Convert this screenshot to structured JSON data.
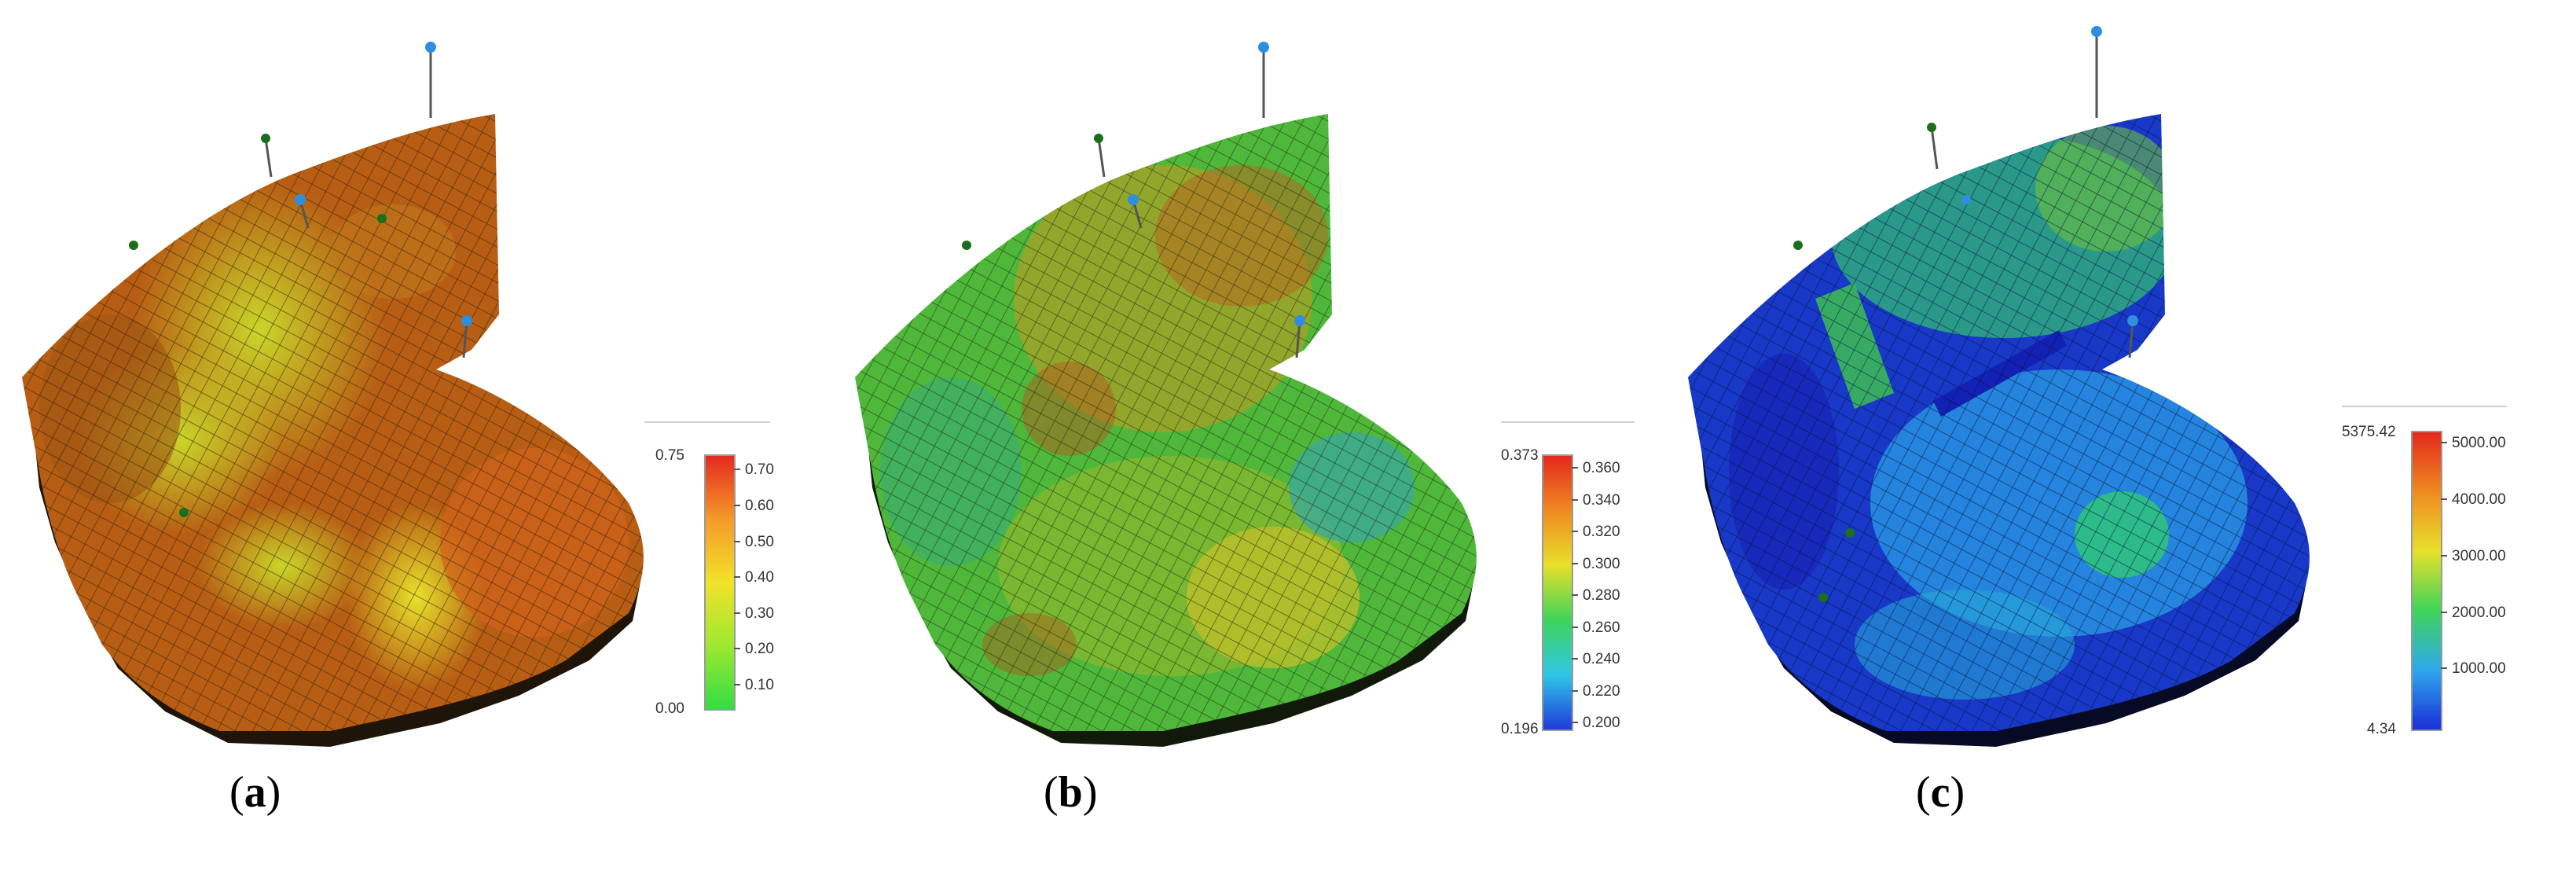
{
  "figure": {
    "panels": [
      {
        "id": "a",
        "caption_open": "(",
        "caption_letter": "a",
        "caption_close": ")",
        "colorscale": "green-yellow-orange-red",
        "colors": [
          "#33dd44",
          "#9ee830",
          "#f2e22a",
          "#f59a2a",
          "#e52a1e"
        ],
        "colorbar": {
          "min_label": "0.00",
          "max_label": "0.75",
          "ticks": [
            "0.10",
            "0.20",
            "0.30",
            "0.40",
            "0.50",
            "0.60",
            "0.70"
          ]
        }
      },
      {
        "id": "b",
        "caption_open": "(",
        "caption_letter": "b",
        "caption_close": ")",
        "colorscale": "blue-cyan-green-yellow-red",
        "colors": [
          "#1f3ad8",
          "#2fc6e8",
          "#3ed45a",
          "#e8e02a",
          "#f08a22",
          "#e3281c"
        ],
        "colorbar": {
          "min_label": "0.196",
          "max_label": "0.373",
          "ticks": [
            "0.200",
            "0.220",
            "0.240",
            "0.260",
            "0.280",
            "0.300",
            "0.320",
            "0.340",
            "0.360"
          ]
        }
      },
      {
        "id": "c",
        "caption_open": "(",
        "caption_letter": "c",
        "caption_close": ")",
        "colorscale": "blue-cyan-green-yellow-red",
        "colors": [
          "#1a2fd6",
          "#2fa8ee",
          "#3ed45a",
          "#e8e02a",
          "#f08a22",
          "#e3281c"
        ],
        "colorbar": {
          "min_label": "4.34",
          "max_label": "5375.42",
          "ticks": [
            "1000.00",
            "2000.00",
            "3000.00",
            "4000.00",
            "5000.00"
          ]
        }
      }
    ]
  }
}
